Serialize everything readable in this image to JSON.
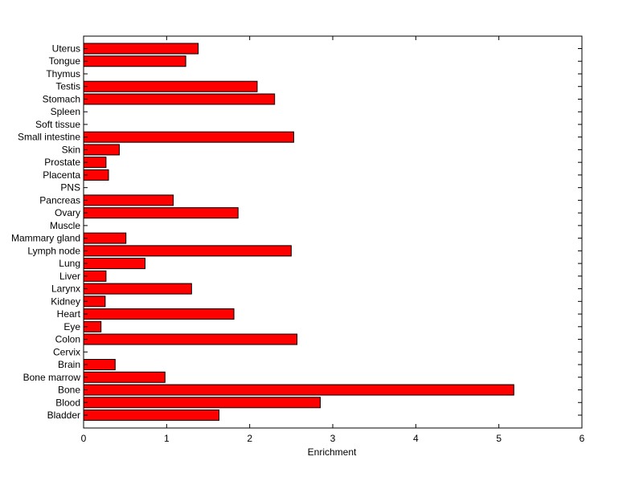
{
  "chart_data": {
    "type": "bar",
    "orientation": "horizontal",
    "title": "",
    "xlabel": "Enrichment",
    "ylabel": "",
    "xlim": [
      0,
      6
    ],
    "x_ticks": [
      "0",
      "1",
      "2",
      "3",
      "4",
      "5",
      "6"
    ],
    "grid": false,
    "bar_color": "#ff0000",
    "edge_color": "#000000",
    "categories": [
      "Bladder",
      "Blood",
      "Bone",
      "Bone marrow",
      "Brain",
      "Cervix",
      "Colon",
      "Eye",
      "Heart",
      "Kidney",
      "Larynx",
      "Liver",
      "Lung",
      "Lymph node",
      "Mammary gland",
      "Muscle",
      "Ovary",
      "Pancreas",
      "PNS",
      "Placenta",
      "Prostate",
      "Skin",
      "Small intestine",
      "Soft tissue",
      "Spleen",
      "Stomach",
      "Testis",
      "Thymus",
      "Tongue",
      "Uterus"
    ],
    "values": [
      1.63,
      2.85,
      5.18,
      0.98,
      0.38,
      0,
      2.57,
      0.21,
      1.81,
      0.26,
      1.3,
      0.27,
      0.74,
      2.5,
      0.51,
      0,
      1.86,
      1.08,
      0,
      0.3,
      0.27,
      0.43,
      2.53,
      0,
      0,
      2.3,
      2.09,
      0,
      1.23,
      1.38
    ]
  }
}
